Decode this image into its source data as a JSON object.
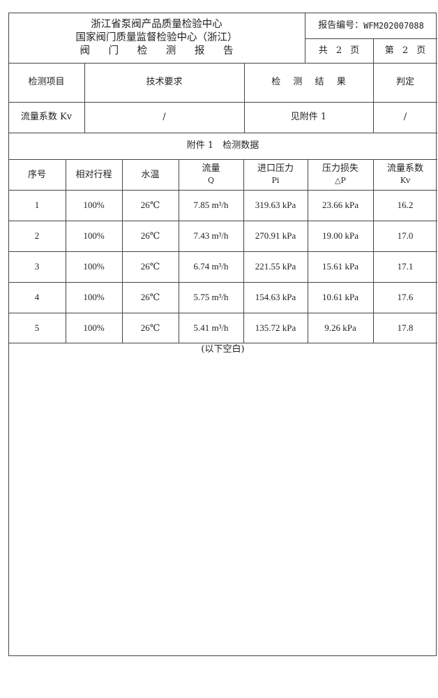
{
  "header": {
    "org_line1": "浙江省泵阀产品质量检验中心",
    "org_line2": "国家阀门质量监督检验中心（浙江）",
    "report_title": "阀 门 检 测 报 告",
    "report_no_label": "报告编号：",
    "report_no": "WFM202007088",
    "total_pages": "共 2 页",
    "current_page": "第 2 页"
  },
  "summary": {
    "headers": [
      "检测项目",
      "技术要求",
      "检 测 结 果",
      "判定"
    ],
    "row": [
      "流量系数 Kv",
      "/",
      "见附件 1",
      "/"
    ]
  },
  "appendix": {
    "title": "附件 1　检测数据",
    "columns": [
      {
        "label": "序号",
        "unit": ""
      },
      {
        "label": "相对行程",
        "unit": ""
      },
      {
        "label": "水温",
        "unit": ""
      },
      {
        "label": "流量",
        "unit": "Q"
      },
      {
        "label": "进口压力",
        "unit": "Pi"
      },
      {
        "label": "压力损失",
        "unit": "△P"
      },
      {
        "label": "流量系数",
        "unit": "Kv"
      }
    ],
    "rows": [
      [
        "1",
        "100%",
        "26℃",
        "7.85 m³/h",
        "319.63 kPa",
        "23.66 kPa",
        "16.2"
      ],
      [
        "2",
        "100%",
        "26℃",
        "7.43 m³/h",
        "270.91 kPa",
        "19.00 kPa",
        "17.0"
      ],
      [
        "3",
        "100%",
        "26℃",
        "6.74 m³/h",
        "221.55 kPa",
        "15.61 kPa",
        "17.1"
      ],
      [
        "4",
        "100%",
        "26℃",
        "5.75 m³/h",
        "154.63 kPa",
        "10.61 kPa",
        "17.6"
      ],
      [
        "5",
        "100%",
        "26℃",
        "5.41 m³/h",
        "135.72 kPa",
        "9.26 kPa",
        "17.8"
      ]
    ],
    "blank_note": "(以下空白)"
  }
}
